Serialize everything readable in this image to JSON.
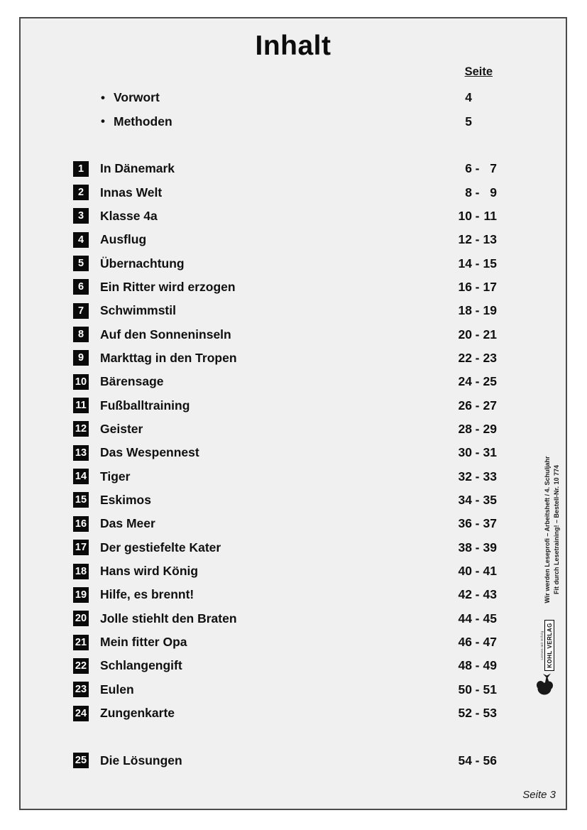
{
  "document": {
    "title": "Inhalt",
    "page_column_header": "Seite",
    "footer_page_label": "Seite 3",
    "bullet_glyph": "•",
    "page_separator": "-"
  },
  "front_matter": [
    {
      "label": "Vorwort",
      "page": "4"
    },
    {
      "label": "Methoden",
      "page": "5"
    }
  ],
  "chapters": [
    {
      "num": "1",
      "title": "In Dänemark",
      "page_from": "6",
      "page_to": "7"
    },
    {
      "num": "2",
      "title": "Innas Welt",
      "page_from": "8",
      "page_to": "9"
    },
    {
      "num": "3",
      "title": "Klasse 4a",
      "page_from": "10",
      "page_to": "11"
    },
    {
      "num": "4",
      "title": "Ausflug",
      "page_from": "12",
      "page_to": "13"
    },
    {
      "num": "5",
      "title": "Übernachtung",
      "page_from": "14",
      "page_to": "15"
    },
    {
      "num": "6",
      "title": "Ein Ritter wird erzogen",
      "page_from": "16",
      "page_to": "17"
    },
    {
      "num": "7",
      "title": "Schwimmstil",
      "page_from": "18",
      "page_to": "19"
    },
    {
      "num": "8",
      "title": "Auf den Sonneninseln",
      "page_from": "20",
      "page_to": "21"
    },
    {
      "num": "9",
      "title": "Markttag in den Tropen",
      "page_from": "22",
      "page_to": "23"
    },
    {
      "num": "10",
      "title": "Bärensage",
      "page_from": "24",
      "page_to": "25"
    },
    {
      "num": "11",
      "title": "Fußballtraining",
      "page_from": "26",
      "page_to": "27"
    },
    {
      "num": "12",
      "title": "Geister",
      "page_from": "28",
      "page_to": "29"
    },
    {
      "num": "13",
      "title": "Das Wespennest",
      "page_from": "30",
      "page_to": "31"
    },
    {
      "num": "14",
      "title": "Tiger",
      "page_from": "32",
      "page_to": "33"
    },
    {
      "num": "15",
      "title": "Eskimos",
      "page_from": "34",
      "page_to": "35"
    },
    {
      "num": "16",
      "title": "Das Meer",
      "page_from": "36",
      "page_to": "37"
    },
    {
      "num": "17",
      "title": "Der gestiefelte Kater",
      "page_from": "38",
      "page_to": "39"
    },
    {
      "num": "18",
      "title": "Hans wird König",
      "page_from": "40",
      "page_to": "41"
    },
    {
      "num": "19",
      "title": "Hilfe, es brennt!",
      "page_from": "42",
      "page_to": "43"
    },
    {
      "num": "20",
      "title": "Jolle stiehlt den Braten",
      "page_from": "44",
      "page_to": "45"
    },
    {
      "num": "21",
      "title": "Mein fitter Opa",
      "page_from": "46",
      "page_to": "47"
    },
    {
      "num": "22",
      "title": "Schlangengift",
      "page_from": "48",
      "page_to": "49"
    },
    {
      "num": "23",
      "title": "Eulen",
      "page_from": "50",
      "page_to": "51"
    },
    {
      "num": "24",
      "title": "Zungenkarte",
      "page_from": "52",
      "page_to": "53"
    },
    {
      "num": "25",
      "title": "Die Lösungen",
      "page_from": "54",
      "page_to": "56",
      "section_break_before": true
    }
  ],
  "sidebar": {
    "edition_line1": "Wir werden Leseprofi  –  Arbeitsheft  /  4. Schuljahr",
    "edition_line2": "Fit durch Lesetraining!   –   Bestell-Nr. 10 774",
    "publisher_tagline": "Lernen mit Erfolg",
    "publisher_name": "KOHL VERLAG"
  },
  "colors": {
    "page_background": "#f0f0f0",
    "page_border": "#4a4a4a",
    "badge_background": "#0a0a0a",
    "badge_text": "#ffffff",
    "text": "#101010"
  }
}
